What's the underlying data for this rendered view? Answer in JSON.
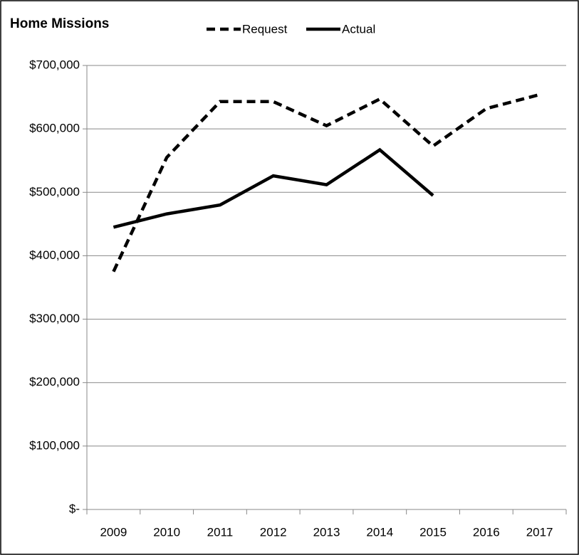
{
  "chart_data": {
    "type": "line",
    "title": "Home Missions",
    "categories": [
      "2009",
      "2010",
      "2011",
      "2012",
      "2013",
      "2014",
      "2015",
      "2016",
      "2017"
    ],
    "series": [
      {
        "name": "Request",
        "color": "#000000",
        "dash": true,
        "values": [
          375000,
          555000,
          643000,
          643000,
          605000,
          647000,
          573000,
          632000,
          654000
        ]
      },
      {
        "name": "Actual",
        "color": "#000000",
        "dash": false,
        "values": [
          445000,
          466000,
          480000,
          526000,
          512000,
          567000,
          495000,
          null,
          null
        ]
      }
    ],
    "ylim": [
      0,
      700000
    ],
    "yticks": [
      {
        "value": 0,
        "label": "$-"
      },
      {
        "value": 100000,
        "label": "$100,000"
      },
      {
        "value": 200000,
        "label": "$200,000"
      },
      {
        "value": 300000,
        "label": "$300,000"
      },
      {
        "value": 400000,
        "label": "$400,000"
      },
      {
        "value": 500000,
        "label": "$500,000"
      },
      {
        "value": 600000,
        "label": "$600,000"
      },
      {
        "value": 700000,
        "label": "$700,000"
      }
    ],
    "grid": true
  }
}
